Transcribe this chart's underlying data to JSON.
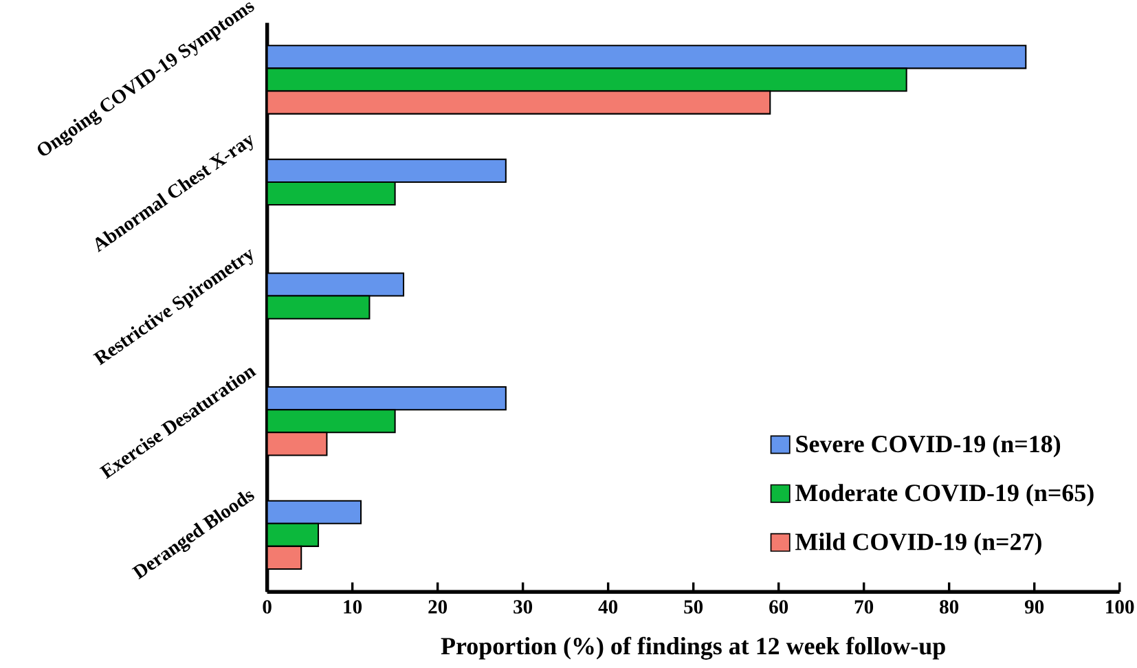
{
  "chart_data": {
    "type": "bar",
    "orientation": "horizontal",
    "xlabel": "Proportion (%) of findings at 12 week follow-up",
    "categories": [
      "Ongoing COVID-19 Symptoms",
      "Abnormal Chest X-ray",
      "Restrictive Spirometry",
      "Exercise Desaturation",
      "Deranged Bloods"
    ],
    "series": [
      {
        "name": "Severe COVID-19 (n=18)",
        "color": "#6495ed",
        "values": [
          89,
          28,
          16,
          28,
          11
        ]
      },
      {
        "name": "Moderate COVID-19 (n=65)",
        "color": "#0cb83c",
        "values": [
          75,
          15,
          12,
          15,
          6
        ]
      },
      {
        "name": "Mild COVID-19 (n=27)",
        "color": "#f37b6f",
        "values": [
          59,
          null,
          null,
          7,
          4
        ]
      }
    ],
    "xlim": [
      0,
      100
    ],
    "xticks": [
      0,
      10,
      20,
      30,
      40,
      50,
      60,
      70,
      80,
      90,
      100
    ],
    "grid": false,
    "legend": "bottom right"
  }
}
